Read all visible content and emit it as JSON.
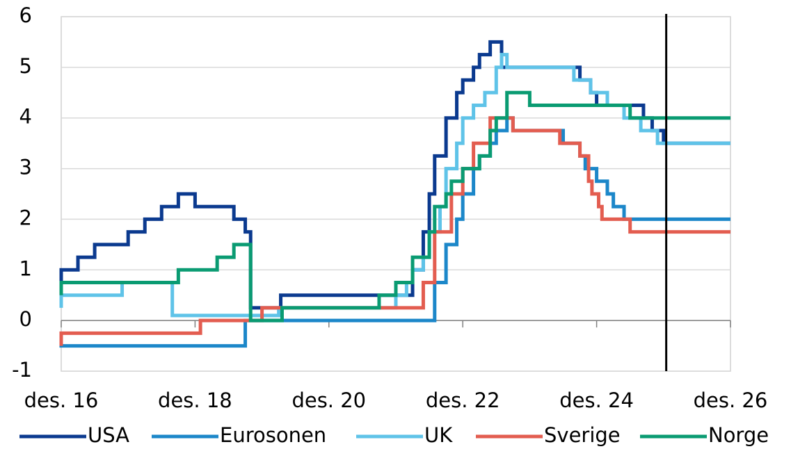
{
  "chart_data": {
    "type": "step",
    "xlim": [
      2016.92,
      2026.92
    ],
    "xticks": [
      {
        "value": 2016.92,
        "label": "des. 16"
      },
      {
        "value": 2018.92,
        "label": "des. 18"
      },
      {
        "value": 2020.92,
        "label": "des. 20"
      },
      {
        "value": 2022.92,
        "label": "des. 22"
      },
      {
        "value": 2024.92,
        "label": "des. 24"
      },
      {
        "value": 2026.92,
        "label": "des. 26"
      }
    ],
    "ylim": [
      -1,
      6
    ],
    "yticks": [
      -1,
      0,
      1,
      2,
      3,
      4,
      5,
      6
    ],
    "grid": true,
    "vline": 2025.96,
    "series": [
      {
        "name": "USA",
        "color": "#0b3a8f",
        "x": [
          2016.92,
          2017.17,
          2017.42,
          2017.92,
          2018.17,
          2018.42,
          2018.67,
          2018.92,
          2019.5,
          2019.67,
          2019.75,
          2020.2,
          2022.17,
          2022.33,
          2022.42,
          2022.5,
          2022.67,
          2022.83,
          2022.92,
          2023.08,
          2023.17,
          2023.33,
          2023.5,
          2024.67,
          2024.83,
          2024.92,
          2025.62,
          2025.75,
          2025.92,
          2026.19
        ],
        "values": [
          0.75,
          1.0,
          1.25,
          1.5,
          1.75,
          2.0,
          2.25,
          2.5,
          2.25,
          2.0,
          1.75,
          0.25,
          0.5,
          1.0,
          1.75,
          2.5,
          3.25,
          4.0,
          4.5,
          4.75,
          5.0,
          5.25,
          5.5,
          5.0,
          4.75,
          4.5,
          4.25,
          4.0,
          3.75,
          3.5
        ]
      },
      {
        "name": "Eurosonen",
        "color": "#1c87c9",
        "x": [
          2016.92,
          2019.67,
          2022.5,
          2022.67,
          2022.83,
          2022.92,
          2023.08,
          2023.17,
          2023.33,
          2023.42,
          2023.58,
          2023.67,
          2024.42,
          2024.67,
          2024.75,
          2024.92,
          2025.08,
          2025.17,
          2025.33,
          2025.42
        ],
        "values": [
          -0.4,
          -0.5,
          0.0,
          0.75,
          1.5,
          2.0,
          2.5,
          3.0,
          3.25,
          3.5,
          3.75,
          4.0,
          3.75,
          3.5,
          3.25,
          3.0,
          2.75,
          2.5,
          2.25,
          2.0
        ]
      },
      {
        "name": "UK",
        "color": "#5fc3e8",
        "x": [
          2016.92,
          2017.83,
          2018.58,
          2020.17,
          2021.92,
          2022.08,
          2022.17,
          2022.33,
          2022.42,
          2022.58,
          2022.67,
          2022.83,
          2022.92,
          2023.08,
          2023.25,
          2023.42,
          2023.5,
          2023.58,
          2024.58,
          2024.83,
          2025.08,
          2025.33,
          2025.58,
          2025.83,
          2026.17
        ],
        "values": [
          0.25,
          0.5,
          0.75,
          0.1,
          0.25,
          0.5,
          0.75,
          1.0,
          1.25,
          1.75,
          2.25,
          3.0,
          3.5,
          4.0,
          4.25,
          4.5,
          5.0,
          5.25,
          5.0,
          4.75,
          4.5,
          4.25,
          4.0,
          3.75,
          3.5
        ]
      },
      {
        "name": "Sverige",
        "color": "#e35d50",
        "x": [
          2016.92,
          2019.0,
          2019.92,
          2022.33,
          2022.5,
          2022.75,
          2022.92,
          2023.08,
          2023.33,
          2023.67,
          2024.37,
          2024.67,
          2024.8,
          2024.85,
          2024.95,
          2025.0,
          2025.42,
          2025.67
        ],
        "values": [
          -0.5,
          -0.25,
          0.0,
          0.25,
          0.75,
          1.75,
          2.5,
          3.0,
          3.5,
          4.0,
          3.75,
          3.5,
          3.25,
          2.75,
          2.5,
          2.25,
          2.0,
          1.75
        ]
      },
      {
        "name": "Norge",
        "color": "#0a9b72",
        "x": [
          2016.92,
          2018.67,
          2019.25,
          2019.5,
          2019.75,
          2020.22,
          2021.67,
          2021.92,
          2022.17,
          2022.42,
          2022.5,
          2022.67,
          2022.75,
          2022.92,
          2023.17,
          2023.33,
          2023.42,
          2023.58,
          2023.92,
          2025.42,
          2025.67
        ],
        "values": [
          0.5,
          0.75,
          1.0,
          1.25,
          1.5,
          0.0,
          0.25,
          0.5,
          0.75,
          1.25,
          1.75,
          2.25,
          2.5,
          2.75,
          3.0,
          3.25,
          3.75,
          4.0,
          4.5,
          4.25,
          4.0
        ]
      }
    ]
  }
}
